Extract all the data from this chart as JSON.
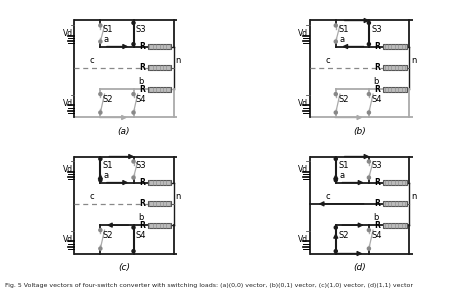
{
  "background_color": "#ffffff",
  "caption": "Fig. 5 Voltage vectors of four-switch converter with switching loads: (a)(0,0) vector, (b)(0,1) vector, (c)(1,0) vector, (d)(1,1) vector",
  "Vd_label": "Vd",
  "R_label": "R",
  "n_label": "n",
  "font_size": 6,
  "caption_font_size": 4.5,
  "configs": [
    {
      "s1": false,
      "s2": false,
      "s3": true,
      "s4": false,
      "c_dashed": true,
      "label": "(a)",
      "top_arrow": false,
      "bot_arrow": true,
      "a_arrow": "right",
      "b_arrow": "left",
      "c_arrow": null,
      "left_top_active": false,
      "left_bot_active": false
    },
    {
      "s1": false,
      "s2": false,
      "s3": true,
      "s4": false,
      "c_dashed": true,
      "label": "(b)",
      "top_arrow": true,
      "bot_arrow": true,
      "a_arrow": "left",
      "b_arrow": "right",
      "c_arrow": null,
      "left_top_active": false,
      "left_bot_active": false
    },
    {
      "s1": true,
      "s2": false,
      "s3": false,
      "s4": true,
      "c_dashed": true,
      "label": "(c)",
      "top_arrow": true,
      "bot_arrow": false,
      "a_arrow": "right",
      "b_arrow": "left",
      "c_arrow": null,
      "left_top_active": true,
      "left_bot_active": false
    },
    {
      "s1": true,
      "s2": true,
      "s3": false,
      "s4": false,
      "c_dashed": false,
      "label": "(d)",
      "top_arrow": true,
      "bot_arrow": true,
      "a_arrow": "right",
      "b_arrow": "right",
      "c_arrow": "left",
      "left_top_active": true,
      "left_bot_active": true
    }
  ]
}
